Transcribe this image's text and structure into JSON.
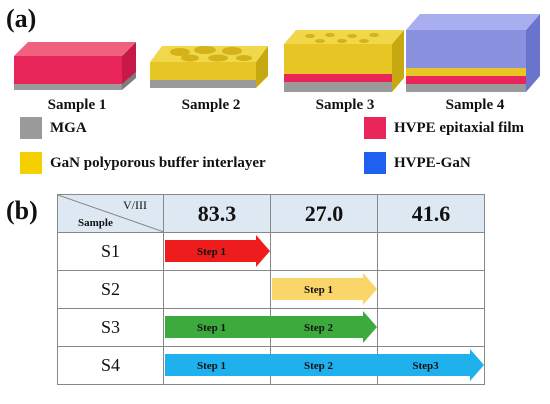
{
  "panel_a": {
    "label": "(a)",
    "samples": [
      "Sample 1",
      "Sample 2",
      "Sample 3",
      "Sample 4"
    ],
    "legend": [
      {
        "text": "MGA",
        "color": "#9a9a9a"
      },
      {
        "text": "HVPE epitaxial film",
        "color": "#e8265a"
      },
      {
        "text": "GaN polyporous buffer interlayer",
        "color": "#f5d000"
      },
      {
        "text": "HVPE-GaN",
        "color": "#2060f0"
      }
    ],
    "colors": {
      "substrate": "#9a9a9a",
      "hvpe_film": "#e8265a",
      "buffer": "#e6c524",
      "hvpe_gan": "#6f80e6"
    }
  },
  "panel_b": {
    "label": "(b)",
    "header": {
      "top": "V/III",
      "bottom": "Sample",
      "values": [
        "83.3",
        "27.0",
        "41.6"
      ]
    },
    "rows": [
      {
        "label": "S1",
        "arrows": [
          {
            "text": "Step 1",
            "color": "#ee1c1c",
            "start": 0,
            "end": 1
          }
        ]
      },
      {
        "label": "S2",
        "arrows": [
          {
            "text": "Step 1",
            "color": "#f9d56a",
            "start": 1,
            "end": 2
          }
        ]
      },
      {
        "label": "S3",
        "arrows": [
          {
            "text": "Step 1",
            "color": "#3daa3d",
            "start": 0,
            "end": 1
          },
          {
            "text": "Step 2",
            "color": "#3daa3d",
            "start": 1,
            "end": 2
          }
        ]
      },
      {
        "label": "S4",
        "arrows": [
          {
            "text": "Step 1",
            "color": "#1fb0ee",
            "start": 0,
            "end": 1
          },
          {
            "text": "Step 2",
            "color": "#1fb0ee",
            "start": 1,
            "end": 2
          },
          {
            "text": "Step3",
            "color": "#1fb0ee",
            "start": 2,
            "end": 3
          }
        ]
      }
    ]
  }
}
